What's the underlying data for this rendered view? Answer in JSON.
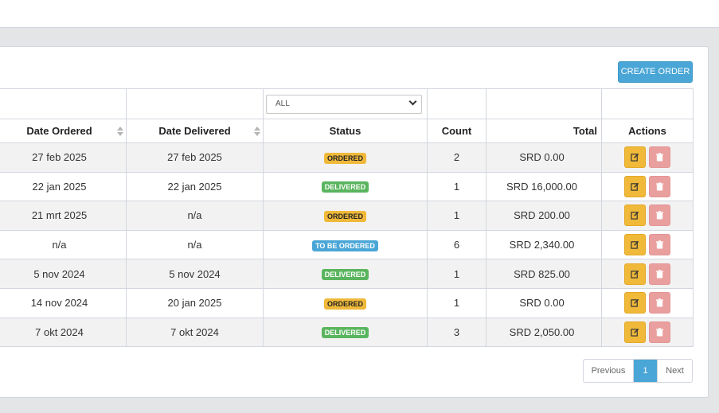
{
  "toolbar": {
    "create_label": "CREATE ORDER"
  },
  "filter": {
    "status_selected": "ALL"
  },
  "columns": {
    "date_ordered": "Date Ordered",
    "date_delivered": "Date Delivered",
    "status": "Status",
    "count": "Count",
    "total": "Total",
    "actions": "Actions"
  },
  "status_colors": {
    "ordered": "#f0b93a",
    "delivered": "#5ab55e",
    "to_be_ordered": "#4aa6d6"
  },
  "rows": [
    {
      "date_ordered": "27 feb 2025",
      "date_delivered": "27 feb 2025",
      "status": "ORDERED",
      "count": "2",
      "total": "SRD 0.00"
    },
    {
      "date_ordered": "22 jan 2025",
      "date_delivered": "22 jan 2025",
      "status": "DELIVERED",
      "count": "1",
      "total": "SRD 16,000.00"
    },
    {
      "date_ordered": "21 mrt 2025",
      "date_delivered": "n/a",
      "status": "ORDERED",
      "count": "1",
      "total": "SRD 200.00"
    },
    {
      "date_ordered": "n/a",
      "date_delivered": "n/a",
      "status": "TO BE ORDERED",
      "count": "6",
      "total": "SRD 2,340.00"
    },
    {
      "date_ordered": "5 nov 2024",
      "date_delivered": "5 nov 2024",
      "status": "DELIVERED",
      "count": "1",
      "total": "SRD 825.00"
    },
    {
      "date_ordered": "14 nov 2024",
      "date_delivered": "20 jan 2025",
      "status": "ORDERED",
      "count": "1",
      "total": "SRD 0.00"
    },
    {
      "date_ordered": "7 okt 2024",
      "date_delivered": "7 okt 2024",
      "status": "DELIVERED",
      "count": "3",
      "total": "SRD 2,050.00"
    }
  ],
  "pagination": {
    "previous": "Previous",
    "current": "1",
    "next": "Next"
  }
}
